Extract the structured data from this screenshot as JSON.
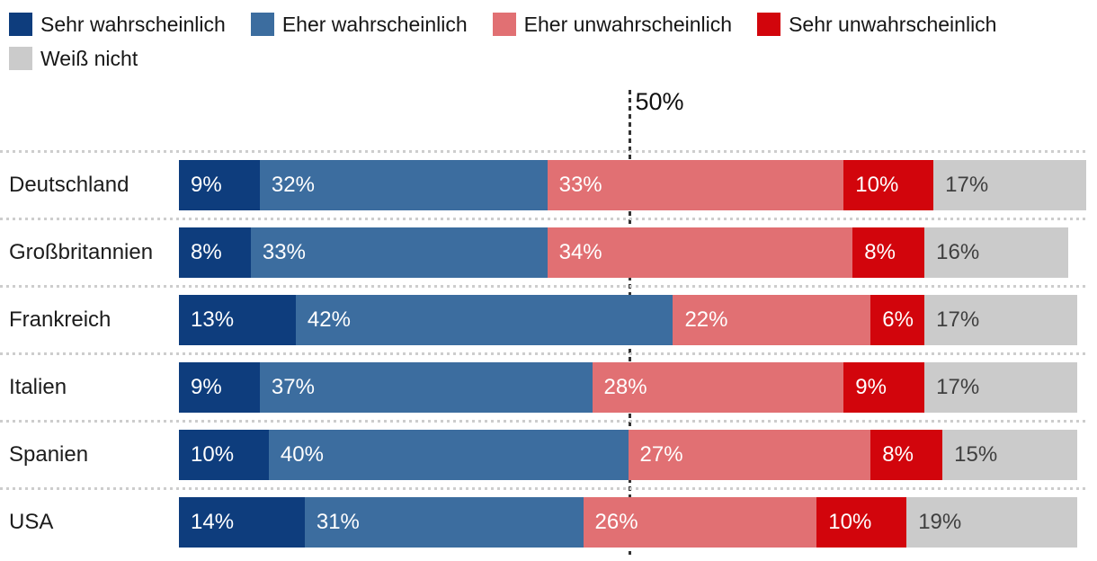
{
  "chart_data": {
    "type": "bar",
    "orientation": "horizontal",
    "stacked": true,
    "value_suffix": "%",
    "axis_max": 101,
    "grid": "dotted-row-separators",
    "legend_position": "top",
    "legend_rows": [
      [
        0,
        1,
        2,
        3
      ],
      [
        4
      ]
    ],
    "reference_line": {
      "label": "50%",
      "value": 50
    },
    "categories": [
      "Deutschland",
      "Großbritannien",
      "Frankreich",
      "Italien",
      "Spanien",
      "USA"
    ],
    "series": [
      {
        "name": "Sehr wahrscheinlich",
        "color": "#0e3d7d",
        "label_color": "#ffffff",
        "values": [
          9,
          8,
          13,
          9,
          10,
          14
        ]
      },
      {
        "name": "Eher wahrscheinlich",
        "color": "#3c6d9f",
        "label_color": "#ffffff",
        "values": [
          32,
          33,
          42,
          37,
          40,
          31
        ]
      },
      {
        "name": "Eher unwahrscheinlich",
        "color": "#e17073",
        "label_color": "#ffffff",
        "values": [
          33,
          34,
          22,
          28,
          27,
          26
        ]
      },
      {
        "name": "Sehr unwahrscheinlich",
        "color": "#d2050c",
        "label_color": "#ffffff",
        "values": [
          10,
          8,
          6,
          9,
          8,
          10
        ]
      },
      {
        "name": "Weiß nicht",
        "color": "#cbcbcb",
        "label_color": "#3f3f3f",
        "values": [
          17,
          16,
          17,
          17,
          15,
          19
        ]
      }
    ],
    "colors": {
      "separator": "#cdcdcd",
      "reference_line": "#333333",
      "text": "#1c1c1c"
    }
  }
}
